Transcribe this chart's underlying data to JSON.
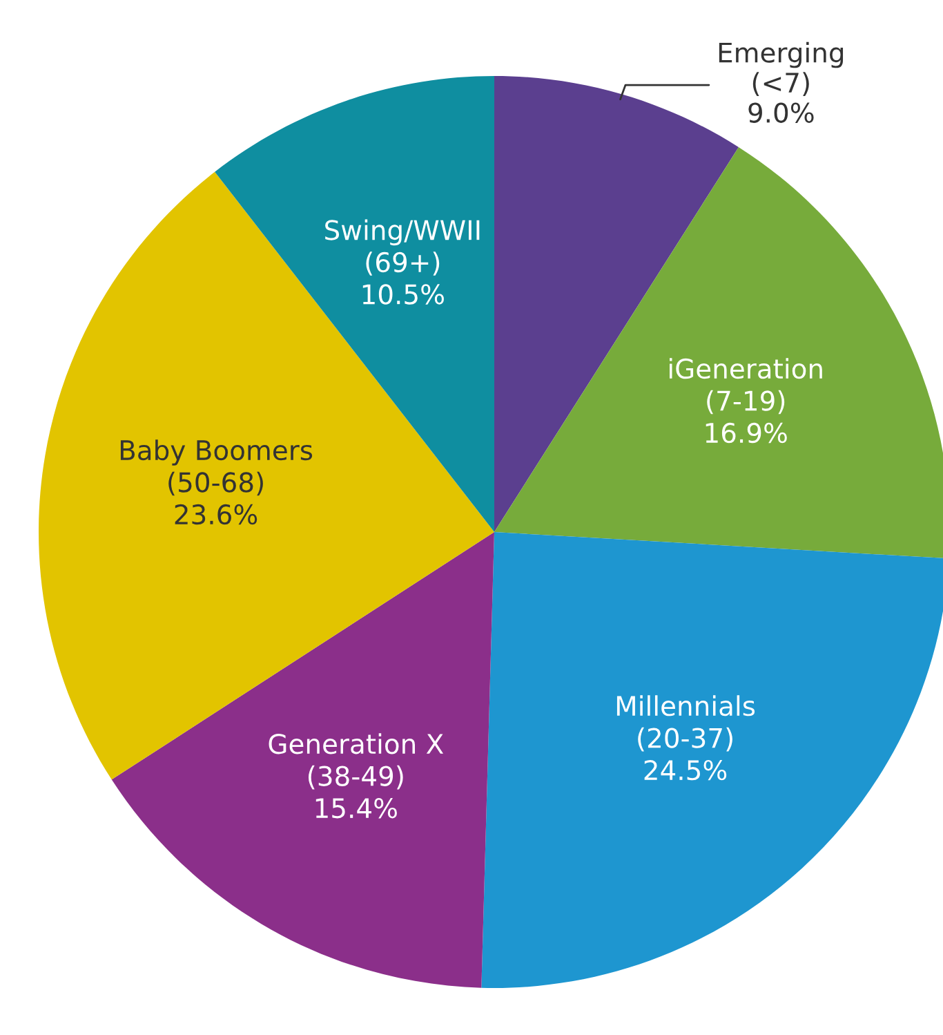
{
  "chart_data": {
    "type": "pie",
    "categories": [
      "Emerging\n(<7)",
      "iGeneration\n(7-19)",
      "Millennials\n(20-37)",
      "Generation X\n(38-49)",
      "Baby Boomers\n(50-68)",
      "Swing/WWII\n(69+)"
    ],
    "values": [
      9.0,
      16.9,
      24.5,
      15.4,
      23.6,
      10.5
    ],
    "value_labels": [
      "9.0%",
      "16.9%",
      "24.5%",
      "15.4%",
      "23.6%",
      "10.5%"
    ],
    "colors": [
      "#5b3f8f",
      "#77ab3b",
      "#1e96d0",
      "#8b2f8a",
      "#e2c400",
      "#0f8ea0"
    ]
  }
}
